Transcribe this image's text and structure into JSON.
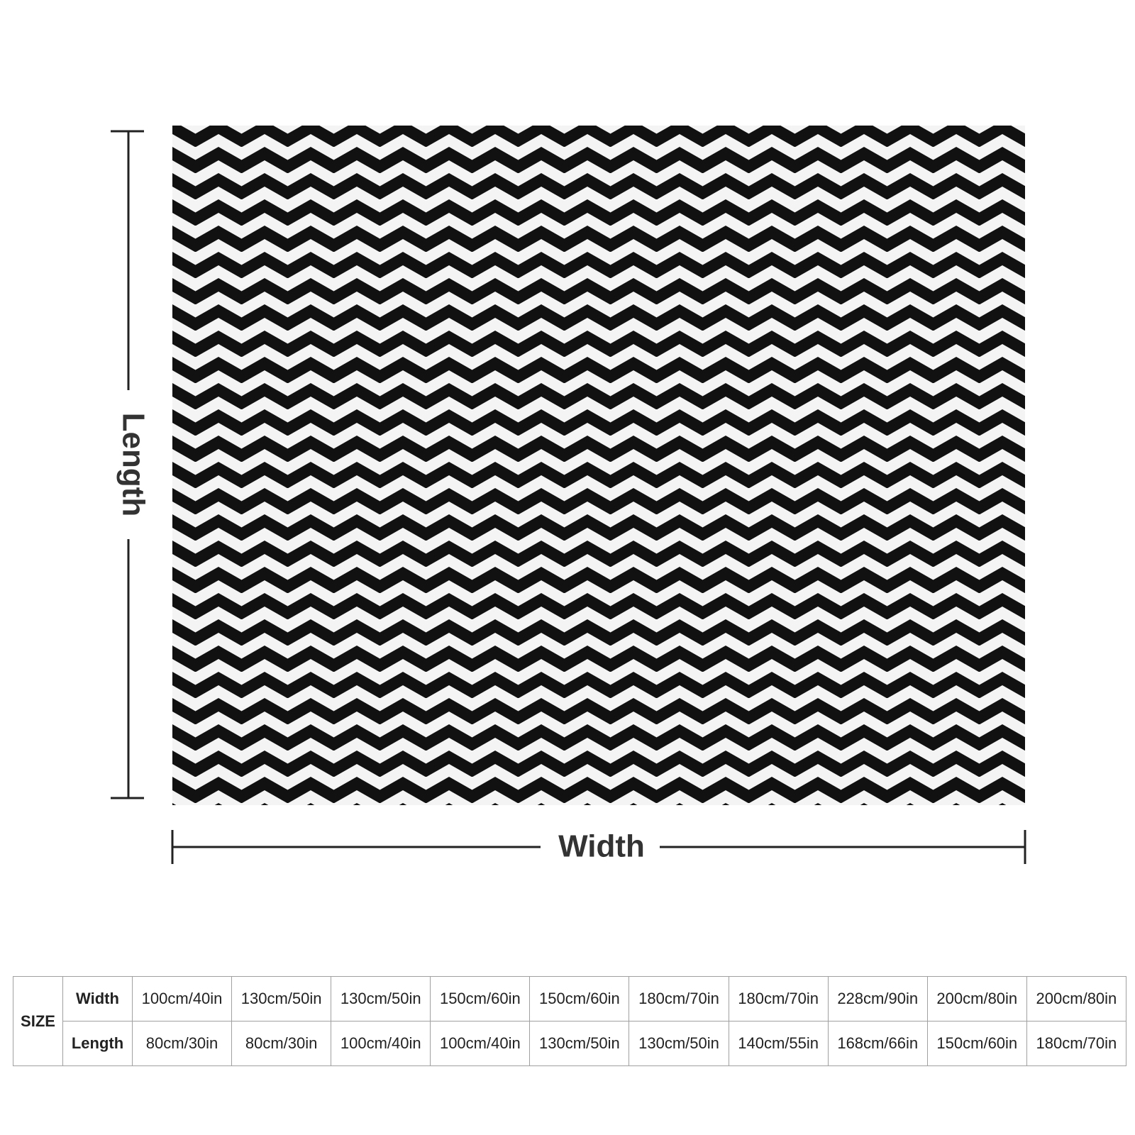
{
  "product_image": {
    "dimension_labels": {
      "length": "Length",
      "width": "Width"
    }
  },
  "size_table": {
    "header": "SIZE",
    "rows": [
      {
        "label": "Width",
        "cells": [
          "100cm/40in",
          "130cm/50in",
          "130cm/50in",
          "150cm/60in",
          "150cm/60in",
          "180cm/70in",
          "180cm/70in",
          "228cm/90in",
          "200cm/80in",
          "200cm/80in"
        ]
      },
      {
        "label": "Length",
        "cells": [
          "80cm/30in",
          "80cm/30in",
          "100cm/40in",
          "100cm/40in",
          "130cm/50in",
          "130cm/50in",
          "140cm/55in",
          "168cm/66in",
          "150cm/60in",
          "180cm/70in"
        ]
      }
    ]
  }
}
